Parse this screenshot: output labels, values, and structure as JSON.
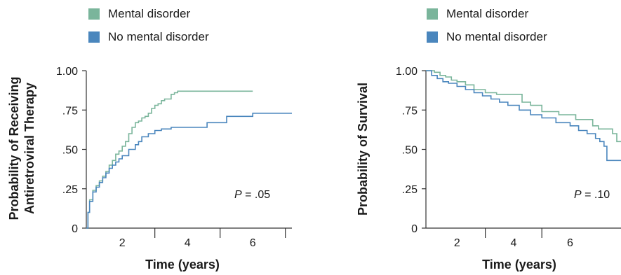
{
  "colors": {
    "mental": "#7ab59b",
    "no_mental": "#4a86bd",
    "axis": "#333333"
  },
  "chart_data": [
    {
      "type": "line",
      "step": true,
      "ylabel_lines": [
        "Probability of Receiving",
        "Antiretroviral Therapy"
      ],
      "xlabel": "Time (years)",
      "xlim": [
        0.9,
        7.2
      ],
      "ylim": [
        0,
        1
      ],
      "xticks": [
        2,
        4,
        6
      ],
      "xtick_marks": [
        3,
        5,
        7
      ],
      "yticks": [
        "1.00",
        ".75",
        ".50",
        ".25",
        "0"
      ],
      "ytick_values": [
        1.0,
        0.75,
        0.5,
        0.25,
        0
      ],
      "legend": [
        "Mental disorder",
        "No mental disorder"
      ],
      "legend_placement": "top",
      "p_label": "P",
      "p_value": " = .05",
      "grid": false,
      "series": [
        {
          "name": "Mental disorder",
          "color_key": "mental",
          "x": [
            0.9,
            0.95,
            1.0,
            1.1,
            1.2,
            1.3,
            1.4,
            1.5,
            1.6,
            1.7,
            1.8,
            1.9,
            2.0,
            2.1,
            2.2,
            2.3,
            2.4,
            2.5,
            2.6,
            2.7,
            2.8,
            2.9,
            3.0,
            3.1,
            3.2,
            3.3,
            3.4,
            3.5,
            3.6,
            3.7,
            4.0,
            5.0,
            6.0
          ],
          "y": [
            0.0,
            0.1,
            0.18,
            0.24,
            0.27,
            0.3,
            0.33,
            0.36,
            0.4,
            0.43,
            0.47,
            0.49,
            0.52,
            0.55,
            0.6,
            0.64,
            0.67,
            0.68,
            0.7,
            0.71,
            0.73,
            0.76,
            0.78,
            0.79,
            0.81,
            0.82,
            0.82,
            0.85,
            0.86,
            0.87,
            0.87,
            0.87,
            0.87
          ]
        },
        {
          "name": "No mental disorder",
          "color_key": "no_mental",
          "x": [
            0.9,
            0.95,
            1.0,
            1.1,
            1.2,
            1.3,
            1.4,
            1.5,
            1.6,
            1.7,
            1.8,
            1.9,
            2.0,
            2.2,
            2.4,
            2.5,
            2.6,
            2.8,
            3.0,
            3.2,
            3.5,
            4.0,
            4.6,
            5.2,
            6.0,
            7.2
          ],
          "y": [
            0.0,
            0.1,
            0.17,
            0.23,
            0.26,
            0.29,
            0.32,
            0.35,
            0.38,
            0.4,
            0.42,
            0.44,
            0.46,
            0.5,
            0.53,
            0.55,
            0.58,
            0.6,
            0.62,
            0.63,
            0.64,
            0.64,
            0.67,
            0.71,
            0.73,
            0.73
          ]
        }
      ]
    },
    {
      "type": "line",
      "step": true,
      "ylabel_lines": [
        "Probability of Survival"
      ],
      "xlabel": "Time (years)",
      "xlim": [
        0.9,
        7.8
      ],
      "ylim": [
        0,
        1
      ],
      "xticks": [
        2,
        4,
        6
      ],
      "xtick_marks": [
        3,
        5
      ],
      "yticks": [
        "1.00",
        ".75",
        ".50",
        ".25",
        "0"
      ],
      "ytick_values": [
        1.0,
        0.75,
        0.5,
        0.25,
        0
      ],
      "legend": [
        "Mental disorder",
        "No mental disorder"
      ],
      "legend_placement": "top",
      "p_label": "P",
      "p_value": " = .10",
      "grid": false,
      "series": [
        {
          "name": "Mental disorder",
          "color_key": "mental",
          "x": [
            0.9,
            1.2,
            1.4,
            1.6,
            1.8,
            2.0,
            2.3,
            2.6,
            3.0,
            3.4,
            3.8,
            4.3,
            4.6,
            5.0,
            5.6,
            6.2,
            6.8,
            7.0,
            7.3,
            7.5,
            7.65,
            7.8
          ],
          "y": [
            1.0,
            0.99,
            0.97,
            0.96,
            0.94,
            0.93,
            0.91,
            0.88,
            0.86,
            0.85,
            0.85,
            0.8,
            0.78,
            0.74,
            0.72,
            0.69,
            0.65,
            0.63,
            0.63,
            0.6,
            0.55,
            0.55
          ]
        },
        {
          "name": "No mental disorder",
          "color_key": "no_mental",
          "x": [
            0.9,
            1.1,
            1.3,
            1.5,
            1.7,
            2.0,
            2.3,
            2.6,
            2.9,
            3.2,
            3.5,
            3.8,
            4.2,
            4.6,
            5.0,
            5.5,
            6.0,
            6.3,
            6.6,
            6.9,
            7.05,
            7.2,
            7.3,
            7.8
          ],
          "y": [
            1.0,
            0.97,
            0.95,
            0.93,
            0.92,
            0.9,
            0.88,
            0.86,
            0.84,
            0.82,
            0.8,
            0.78,
            0.75,
            0.72,
            0.7,
            0.67,
            0.65,
            0.62,
            0.6,
            0.57,
            0.55,
            0.52,
            0.43,
            0.43
          ]
        }
      ]
    }
  ]
}
